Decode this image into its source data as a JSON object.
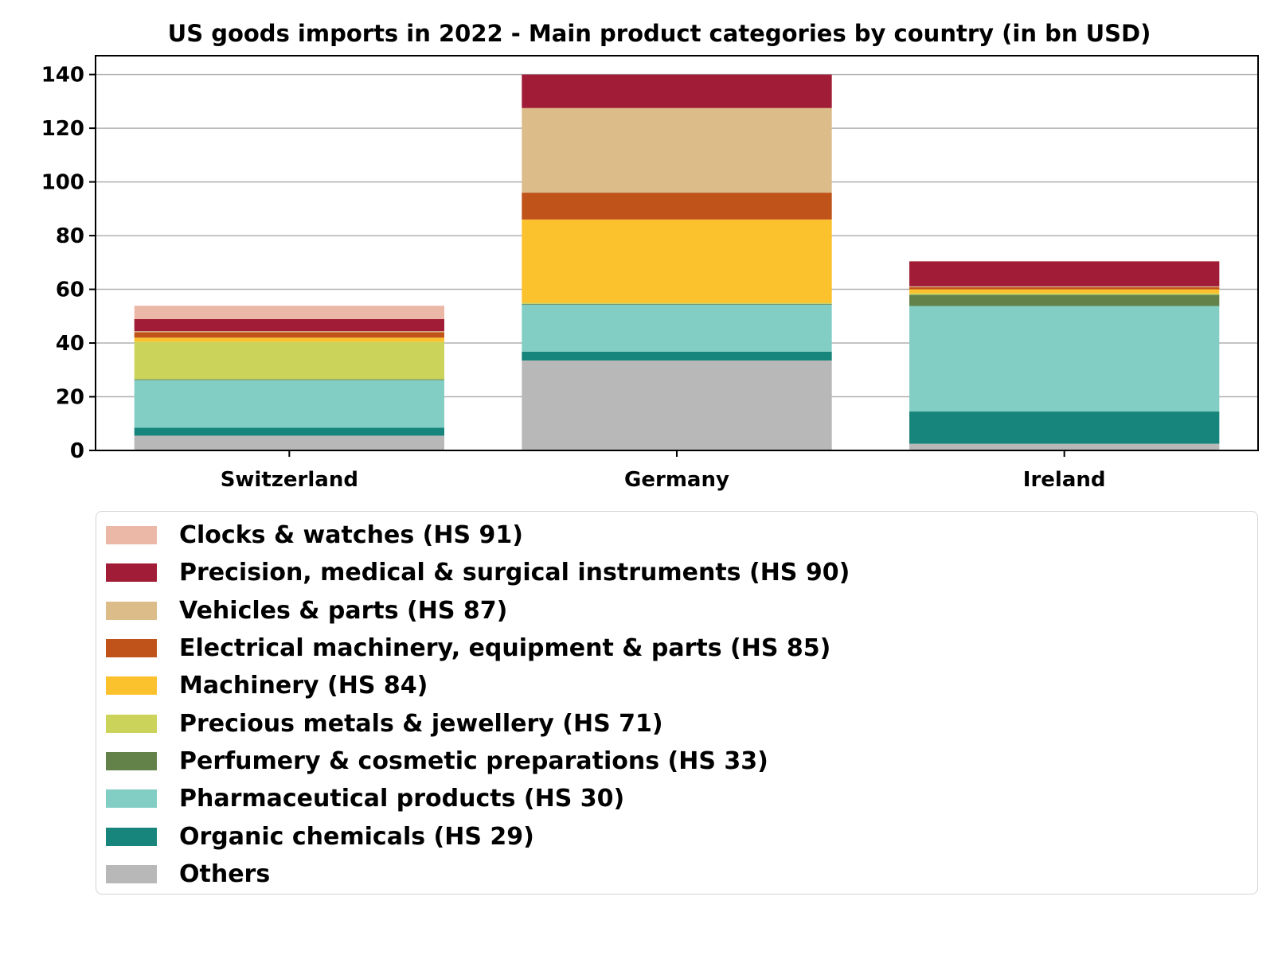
{
  "chart_data": {
    "type": "bar",
    "stacked": true,
    "title": "US goods imports in 2022 - Main product categories by country (in bn USD)",
    "xlabel": "",
    "ylabel": "",
    "categories": [
      "Switzerland",
      "Germany",
      "Ireland"
    ],
    "ylim": [
      0,
      147
    ],
    "yticks": [
      0,
      20,
      40,
      60,
      80,
      100,
      120,
      140
    ],
    "grid": "horizontal",
    "legend_position": "below",
    "series": [
      {
        "name": "Others",
        "color": "#b8b8b8",
        "values": [
          5.5,
          33.5,
          2.5
        ]
      },
      {
        "name": "Organic chemicals (HS 29)",
        "color": "#17857b",
        "values": [
          3.0,
          3.3,
          12.0
        ]
      },
      {
        "name": "Pharmaceutical products (HS 30)",
        "color": "#83cec4",
        "values": [
          17.7,
          17.5,
          39.3
        ]
      },
      {
        "name": "Perfumery & cosmetic preparations (HS 33)",
        "color": "#62824a",
        "values": [
          0.3,
          0.3,
          4.2
        ]
      },
      {
        "name": "Precious metals & jewellery (HS 71)",
        "color": "#cbd35a",
        "values": [
          14.0,
          0.4,
          0.5
        ]
      },
      {
        "name": "Machinery (HS 84)",
        "color": "#fcc22e",
        "values": [
          1.5,
          31.0,
          1.5
        ]
      },
      {
        "name": "Electrical machinery, equipment & parts (HS 85)",
        "color": "#c0531a",
        "values": [
          2.0,
          10.0,
          0.8
        ]
      },
      {
        "name": "Vehicles & parts (HS 87)",
        "color": "#dcbc88",
        "values": [
          0.4,
          31.5,
          0.3
        ]
      },
      {
        "name": "Precision, medical & surgical instruments (HS 90)",
        "color": "#a11d37",
        "values": [
          4.5,
          12.5,
          9.3
        ]
      },
      {
        "name": "Clocks & watches (HS 91)",
        "color": "#ebb8a8",
        "values": [
          5.0,
          0.0,
          0.1
        ]
      }
    ]
  }
}
